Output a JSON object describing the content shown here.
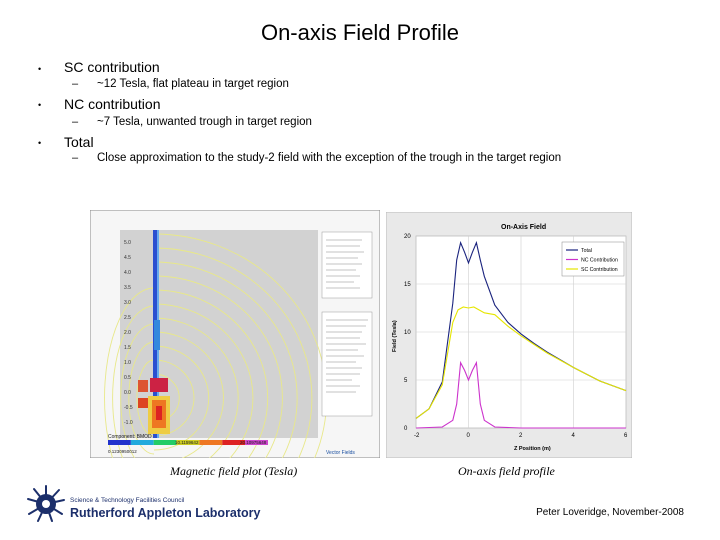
{
  "slide": {
    "title": "On-axis Field Profile",
    "bullets": [
      {
        "marker": "•",
        "text": "SC contribution",
        "sub_marker": "–",
        "sub": "~12 Tesla, flat plateau in target region"
      },
      {
        "marker": "•",
        "text": "NC contribution",
        "sub_marker": "–",
        "sub": "~7 Tesla, unwanted trough in target region"
      },
      {
        "marker": "•",
        "text": "Total",
        "sub_marker": "–",
        "sub": "Close approximation to the study-2 field with the exception of the trough in the target region"
      }
    ],
    "caption_left": "Magnetic field plot (Tesla)",
    "caption_right": "On-axis field profile",
    "author": "Peter Loveridge, November-2008",
    "logo": {
      "line1": "Science & Technology Facilities Council",
      "line2": "Rutherford Appleton Laboratory",
      "icon": "stfc-sunburst-logo"
    }
  },
  "field_plot": {
    "y_ticks": [
      "5.0",
      "4.5",
      "4.0",
      "3.5",
      "3.0",
      "2.5",
      "2.0",
      "1.5",
      "1.0",
      "0.5",
      "0.0",
      "-0.5",
      "-1.0"
    ],
    "footer": "Component: BMOD",
    "footer_values": [
      "0.1230950012",
      "10.1159642",
      "20.10975648"
    ],
    "brand": "Vector Fields",
    "colormap": [
      "#2233cc",
      "#22aadd",
      "#22cc66",
      "#cccc22",
      "#ee7722",
      "#dd2222",
      "#cc44cc"
    ]
  },
  "chart_data": {
    "type": "line",
    "title": "On-Axis Field",
    "xlabel": "Z Position (m)",
    "ylabel": "Field (Tesla)",
    "xlim": [
      -2,
      6
    ],
    "ylim": [
      0,
      20
    ],
    "x_ticks": [
      -2,
      0,
      2,
      4,
      6
    ],
    "y_ticks": [
      0,
      5,
      10,
      15,
      20
    ],
    "grid": true,
    "legend": "top-right",
    "series": [
      {
        "name": "Total",
        "color": "#1a237e",
        "x": [
          -2,
          -1.5,
          -1.0,
          -0.6,
          -0.45,
          -0.3,
          -0.15,
          0,
          0.15,
          0.3,
          0.45,
          0.6,
          1.0,
          1.5,
          2.0,
          2.5,
          3.0,
          4.0,
          5.0,
          6.0
        ],
        "y": [
          1.0,
          2.0,
          4.8,
          13.0,
          17.5,
          19.3,
          18.3,
          17.2,
          18.3,
          19.3,
          17.5,
          15.8,
          12.8,
          11.0,
          9.8,
          8.8,
          7.9,
          6.3,
          4.9,
          3.9
        ]
      },
      {
        "name": "NC Contribution",
        "color": "#cc33cc",
        "x": [
          -2,
          -1.0,
          -0.6,
          -0.45,
          -0.3,
          -0.15,
          0,
          0.15,
          0.3,
          0.45,
          0.6,
          1.0,
          2.0,
          4.0,
          6.0
        ],
        "y": [
          0,
          0.1,
          0.8,
          2.5,
          6.8,
          6.0,
          5.0,
          6.0,
          6.8,
          2.5,
          0.8,
          0.1,
          0,
          0,
          0
        ]
      },
      {
        "name": "SC Contribution",
        "color": "#e6e600",
        "x": [
          -2,
          -1.5,
          -1.0,
          -0.6,
          -0.4,
          -0.2,
          0,
          0.2,
          0.4,
          0.6,
          1.0,
          1.5,
          2.0,
          2.5,
          3.0,
          4.0,
          5.0,
          6.0
        ],
        "y": [
          1.0,
          2.0,
          4.5,
          11.0,
          12.3,
          12.6,
          12.5,
          12.6,
          12.3,
          12.0,
          11.8,
          10.6,
          9.6,
          8.7,
          7.8,
          6.3,
          4.9,
          3.9
        ]
      }
    ]
  }
}
